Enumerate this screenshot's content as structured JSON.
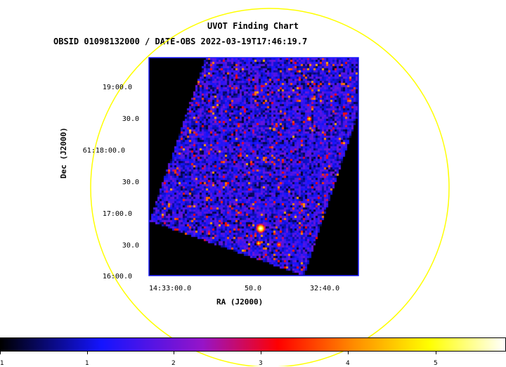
{
  "header": {
    "title": "UVOT Finding Chart",
    "subtitle": "OBSID 01098132000 / DATE-OBS 2022-03-19T17:46:19.7"
  },
  "axes": {
    "y_title": "Dec (J2000)",
    "x_title": "RA (J2000)",
    "y_ticks": [
      "19:00.0",
      "30.0",
      "61:18:00.0",
      "30.0",
      "17:00.0",
      "30.0",
      "16:00.0"
    ],
    "x_ticks": [
      "14:33:00.0",
      "50.0",
      "32:40.0"
    ]
  },
  "colorbar": {
    "ticks": [
      "1",
      "1",
      "2",
      "3",
      "4",
      "5"
    ]
  },
  "colors": {
    "field_circle": "#ffff00",
    "frame": "#1a1aff",
    "background": "#000000"
  }
}
